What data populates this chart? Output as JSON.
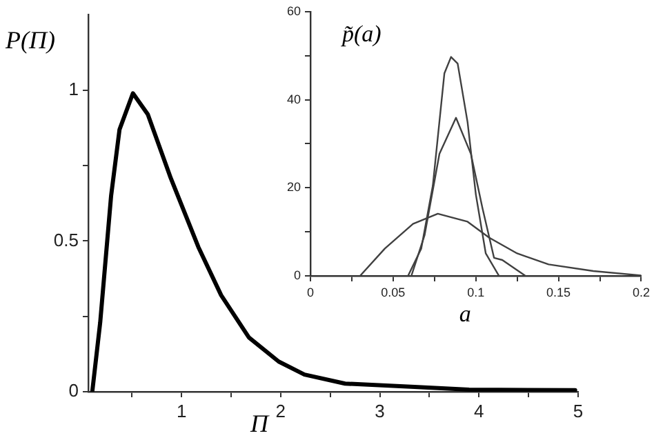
{
  "chart_data": [
    {
      "type": "line",
      "xlabel": "Π",
      "ylabel": "P(Π)",
      "xlim": [
        0.06,
        5
      ],
      "ylim": [
        0,
        1.25
      ],
      "xticks": [
        {
          "value": 0.5,
          "label": null
        },
        1,
        {
          "value": 1.5,
          "label": null
        },
        2,
        {
          "value": 2.5,
          "label": null
        },
        3,
        {
          "value": 3.5,
          "label": null
        },
        4,
        {
          "value": 4.5,
          "label": null
        },
        5
      ],
      "yticks": [
        0,
        {
          "value": 0.25,
          "label": null
        },
        0.5,
        {
          "value": 0.75,
          "label": null
        },
        1
      ],
      "grid": false,
      "legend": false,
      "marker": "none",
      "line_style": "solid",
      "series": [
        {
          "color": "#000000",
          "x": [
            0.1,
            0.18,
            0.29,
            0.375,
            0.51,
            0.66,
            0.89,
            1.17,
            1.4,
            1.68,
            1.98,
            2.24,
            2.65,
            3.35,
            3.9,
            4.97
          ],
          "values": [
            0,
            0.23,
            0.65,
            0.87,
            0.99,
            0.92,
            0.71,
            0.48,
            0.32,
            0.18,
            0.1,
            0.057,
            0.027,
            0.016,
            0.007,
            0.005
          ]
        }
      ]
    },
    {
      "type": "line",
      "xlabel": "a",
      "ylabel": "p̃(a)",
      "xlim": [
        0,
        0.2
      ],
      "ylim": [
        0,
        60
      ],
      "xticks": [
        0,
        {
          "value": 0.025,
          "label": null
        },
        0.05,
        {
          "value": 0.075,
          "label": null
        },
        0.1,
        {
          "value": 0.125,
          "label": null
        },
        0.15,
        {
          "value": 0.175,
          "label": null
        },
        0.2
      ],
      "yticks": [
        0,
        {
          "value": 10,
          "label": null
        },
        20,
        {
          "value": 30,
          "label": null
        },
        40,
        {
          "value": 50,
          "label": null
        },
        60
      ],
      "grid": false,
      "legend": false,
      "marker": "none",
      "line_style": "solid",
      "series": [
        {
          "color": "#404040",
          "x": [
            0.03,
            0.045,
            0.062,
            0.077,
            0.095,
            0.108,
            0.125,
            0.144,
            0.171,
            0.2
          ],
          "values": [
            0,
            6.2,
            11.8,
            14.1,
            12.3,
            8.7,
            5.1,
            2.6,
            1.1,
            0.1
          ]
        },
        {
          "color": "#404040",
          "x": [
            0.059,
            0.067,
            0.074,
            0.081,
            0.085,
            0.089,
            0.095,
            0.1,
            0.106,
            0.114
          ],
          "values": [
            0,
            6.2,
            20.5,
            46,
            49.7,
            48.2,
            34.9,
            18.5,
            5.1,
            0
          ]
        },
        {
          "color": "#404040",
          "x": [
            0.061,
            0.069,
            0.078,
            0.088,
            0.097,
            0.104,
            0.111,
            0.116,
            0.13
          ],
          "values": [
            0,
            9.2,
            27.7,
            35.9,
            27.7,
            15.4,
            4.1,
            3.6,
            0
          ]
        }
      ]
    }
  ]
}
